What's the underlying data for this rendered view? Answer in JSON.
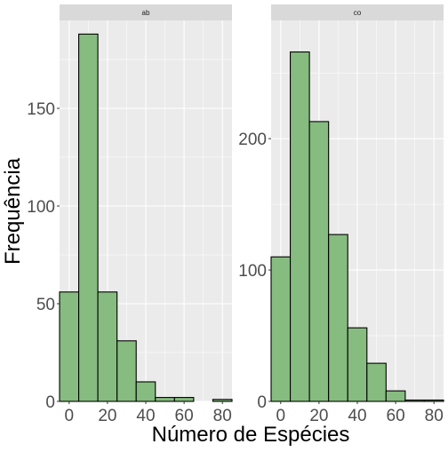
{
  "chart_data": {
    "type": "bar",
    "xlabel": "Número de Espécies",
    "ylabel": "Frequência",
    "grid": true,
    "colors": {
      "panel_background": "#ebebeb",
      "grid_major": "#ffffff",
      "strip_background": "#d9d9d9",
      "bar_fill": "#86bc7f",
      "bar_stroke": "#000000"
    },
    "bin_width": 10,
    "panels": [
      {
        "strip": "ab",
        "xlim": [
          -5,
          85
        ],
        "ylim": [
          0,
          195
        ],
        "xticks": [
          0,
          20,
          40,
          60,
          80
        ],
        "yticks": [
          0,
          50,
          100,
          150
        ],
        "bins": [
          {
            "x": 0,
            "count": 56
          },
          {
            "x": 10,
            "count": 188
          },
          {
            "x": 20,
            "count": 56
          },
          {
            "x": 30,
            "count": 31
          },
          {
            "x": 40,
            "count": 10
          },
          {
            "x": 50,
            "count": 2
          },
          {
            "x": 60,
            "count": 2
          },
          {
            "x": 70,
            "count": 0
          },
          {
            "x": 80,
            "count": 1
          },
          {
            "x": 90,
            "count": 0
          }
        ]
      },
      {
        "strip": "co",
        "xlim": [
          -5,
          85
        ],
        "ylim": [
          0,
          290
        ],
        "xticks": [
          0,
          20,
          40,
          60,
          80
        ],
        "yticks": [
          0,
          100,
          200
        ],
        "bins": [
          {
            "x": 0,
            "count": 110
          },
          {
            "x": 10,
            "count": 266
          },
          {
            "x": 20,
            "count": 213
          },
          {
            "x": 30,
            "count": 127
          },
          {
            "x": 40,
            "count": 56
          },
          {
            "x": 50,
            "count": 29
          },
          {
            "x": 60,
            "count": 8
          },
          {
            "x": 70,
            "count": 1
          },
          {
            "x": 80,
            "count": 1
          },
          {
            "x": 90,
            "count": 2
          }
        ]
      }
    ]
  }
}
